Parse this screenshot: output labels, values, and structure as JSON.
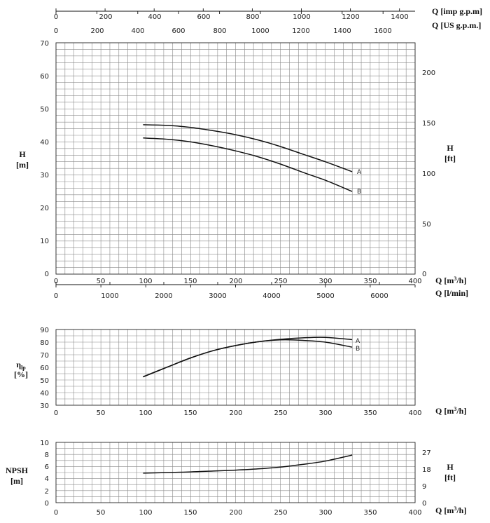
{
  "chart_data": [
    {
      "id": "head",
      "type": "line",
      "title": "",
      "xlabel": "Q [m³/h]",
      "ylabel": "H [m]",
      "xlim": [
        0,
        400
      ],
      "ylim": [
        0,
        70
      ],
      "x_ticks": [
        "0",
        "50",
        "100",
        "150",
        "200",
        "250",
        "300",
        "350",
        "400"
      ],
      "y_ticks": [
        "0",
        "10",
        "20",
        "30",
        "40",
        "50",
        "60",
        "70"
      ],
      "secondary_x_axes": [
        {
          "label": "Q [imp g.p.m]",
          "ticks": [
            "0",
            "200",
            "400",
            "600",
            "800",
            "1000",
            "1200",
            "1400"
          ]
        },
        {
          "label": "Q [US g.p.m.]",
          "ticks": [
            "0",
            "200",
            "400",
            "600",
            "800",
            "1000",
            "1200",
            "1400",
            "1600"
          ]
        },
        {
          "label": "Q [l/min]",
          "ticks": [
            "0",
            "1000",
            "2000",
            "3000",
            "4000",
            "5000",
            "6000"
          ]
        }
      ],
      "secondary_y_axis": {
        "label": "H [ft]",
        "ticks": [
          "0",
          "50",
          "100",
          "150",
          "200"
        ]
      },
      "grid": true,
      "series": [
        {
          "name": "A",
          "x": [
            97,
            125,
            150,
            175,
            200,
            225,
            250,
            275,
            300,
            330
          ],
          "y": [
            45.2,
            45.0,
            44.4,
            43.4,
            42.2,
            40.6,
            38.6,
            36.3,
            34.0,
            31.0
          ]
        },
        {
          "name": "B",
          "x": [
            97,
            125,
            150,
            175,
            200,
            225,
            250,
            275,
            300,
            330
          ],
          "y": [
            41.2,
            40.8,
            40.0,
            38.8,
            37.3,
            35.5,
            33.3,
            30.8,
            28.4,
            25.0
          ]
        }
      ]
    },
    {
      "id": "efficiency",
      "type": "line",
      "title": "",
      "xlabel": "Q [m³/h]",
      "ylabel": "ηp [%]",
      "xlim": [
        0,
        400
      ],
      "ylim": [
        30,
        90
      ],
      "x_ticks": [
        "0",
        "50",
        "100",
        "150",
        "200",
        "250",
        "300",
        "350",
        "400"
      ],
      "y_ticks": [
        "30",
        "40",
        "50",
        "60",
        "70",
        "80",
        "90"
      ],
      "grid": true,
      "series": [
        {
          "name": "A",
          "x": [
            97,
            125,
            150,
            175,
            200,
            225,
            250,
            275,
            300,
            330
          ],
          "y": [
            52.5,
            60.5,
            67.5,
            73.2,
            77.3,
            80.3,
            82.2,
            83.4,
            83.8,
            82.0
          ]
        },
        {
          "name": "B",
          "x": [
            97,
            125,
            150,
            175,
            200,
            225,
            250,
            275,
            300,
            330
          ],
          "y": [
            52.5,
            60.5,
            67.5,
            73.2,
            77.3,
            80.3,
            81.8,
            81.4,
            80.0,
            76.0
          ]
        }
      ]
    },
    {
      "id": "npsh",
      "type": "line",
      "title": "",
      "xlabel": "Q [m³/h]",
      "ylabel": "NPSH [m]",
      "xlim": [
        0,
        400
      ],
      "ylim": [
        0,
        10
      ],
      "x_ticks": [
        "0",
        "50",
        "100",
        "150",
        "200",
        "250",
        "300",
        "350",
        "400"
      ],
      "y_ticks": [
        "0",
        "2",
        "4",
        "6",
        "8",
        "10"
      ],
      "secondary_y_axis": {
        "label": "H [ft]",
        "ticks": [
          "0",
          "9",
          "18",
          "27"
        ]
      },
      "grid": true,
      "series": [
        {
          "name": "",
          "x": [
            97,
            125,
            150,
            175,
            200,
            225,
            250,
            275,
            300,
            330
          ],
          "y": [
            4.9,
            5.0,
            5.1,
            5.25,
            5.4,
            5.6,
            5.9,
            6.35,
            6.9,
            7.9
          ]
        }
      ]
    }
  ]
}
